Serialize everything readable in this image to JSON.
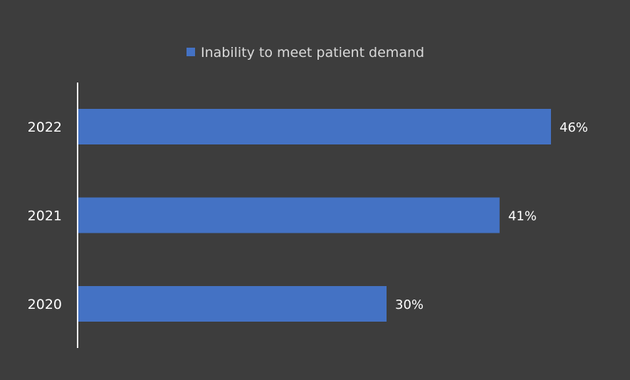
{
  "chart_data": {
    "type": "bar",
    "orientation": "horizontal",
    "categories": [
      "2022",
      "2021",
      "2020"
    ],
    "series": [
      {
        "name": "Inability to meet patient demand",
        "values": [
          46,
          41,
          30
        ],
        "data_labels": [
          "46%",
          "41%",
          "30%"
        ],
        "color": "#4472c4"
      }
    ],
    "xlim": [
      0,
      50
    ],
    "grid": false,
    "legend_position": "top-center",
    "colors": {
      "background": "#3d3d3d",
      "axis": "#ffffff",
      "text": "#ffffff",
      "legend_text": "#d9d9d9"
    }
  }
}
